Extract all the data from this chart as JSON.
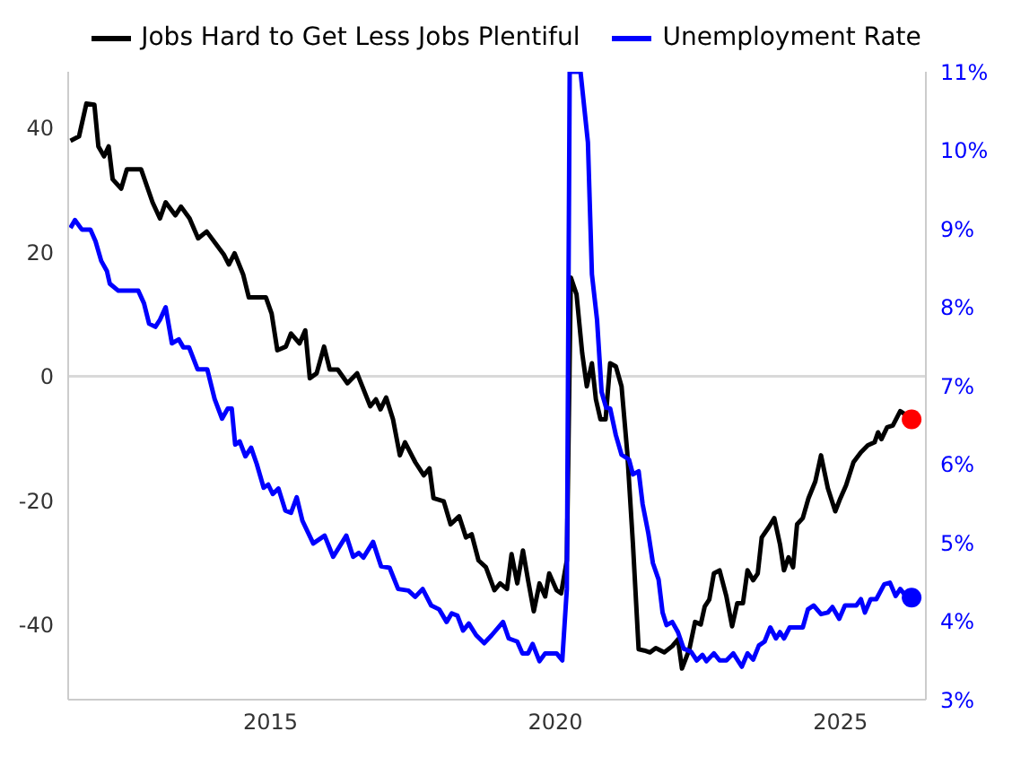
{
  "chart_data": {
    "type": "line",
    "legend": "top",
    "line_style": "solid",
    "marker": "none",
    "xlim": [
      2011.45,
      2026.5
    ],
    "xticks": [
      2015,
      2020,
      2025
    ],
    "ylim": [
      -52,
      49
    ],
    "yticks": [
      -40,
      -20,
      0,
      20,
      40
    ],
    "y2lim": [
      3,
      11
    ],
    "y2ticks": [
      {
        "value": 3,
        "label": "3%"
      },
      {
        "value": 4,
        "label": "4%"
      },
      {
        "value": 5,
        "label": "5%"
      },
      {
        "value": 6,
        "label": "6%"
      },
      {
        "value": 7,
        "label": "7%"
      },
      {
        "value": 8,
        "label": "8%"
      },
      {
        "value": 9,
        "label": "9%"
      },
      {
        "value": 10,
        "label": "10%"
      },
      {
        "value": 11,
        "label": "11%"
      }
    ],
    "grid": false,
    "ref_lines": [
      {
        "axis": "y",
        "value": 0,
        "color": "#d9d9d9"
      }
    ],
    "series": [
      {
        "name": "Jobs Hard to Get Less Jobs Plentiful",
        "color": "#000000",
        "x": [
          2011.49,
          2011.64,
          2011.77,
          2011.91,
          2011.98,
          2012.08,
          2012.16,
          2012.23,
          2012.38,
          2012.48,
          2012.73,
          2012.93,
          2013.06,
          2013.16,
          2013.33,
          2013.43,
          2013.58,
          2013.73,
          2013.88,
          2014.18,
          2014.27,
          2014.37,
          2014.52,
          2014.62,
          2014.92,
          2015.02,
          2015.12,
          2015.27,
          2015.36,
          2015.51,
          2015.61,
          2015.69,
          2015.81,
          2015.94,
          2016.04,
          2016.18,
          2016.35,
          2016.52,
          2016.75,
          2016.85,
          2016.93,
          2017.03,
          2017.15,
          2017.27,
          2017.36,
          2017.54,
          2017.69,
          2017.79,
          2017.86,
          2018.04,
          2018.16,
          2018.31,
          2018.43,
          2018.53,
          2018.65,
          2018.78,
          2018.93,
          2019.03,
          2019.15,
          2019.23,
          2019.33,
          2019.43,
          2019.52,
          2019.62,
          2019.72,
          2019.82,
          2019.89,
          2020.02,
          2020.1,
          2020.2,
          2020.27,
          2020.37,
          2020.47,
          2020.55,
          2020.64,
          2020.71,
          2020.79,
          2020.88,
          2020.96,
          2021.06,
          2021.16,
          2021.26,
          2021.36,
          2021.46,
          2021.56,
          2021.66,
          2021.76,
          2021.91,
          2022.05,
          2022.15,
          2022.22,
          2022.35,
          2022.45,
          2022.55,
          2022.62,
          2022.7,
          2022.78,
          2022.88,
          2023.0,
          2023.1,
          2023.19,
          2023.29,
          2023.37,
          2023.47,
          2023.55,
          2023.62,
          2023.74,
          2023.84,
          2023.94,
          2024.01,
          2024.09,
          2024.17,
          2024.24,
          2024.34,
          2024.44,
          2024.56,
          2024.66,
          2024.78,
          2024.91,
          2025.0,
          2025.1,
          2025.23,
          2025.36,
          2025.48,
          2025.6,
          2025.66,
          2025.72,
          2025.82,
          2025.92,
          2026.05,
          2026.17,
          2026.25
        ],
        "values": [
          37.9,
          38.6,
          43.9,
          43.7,
          37,
          35.4,
          37,
          31.7,
          30.2,
          33.3,
          33.3,
          28,
          25.4,
          28,
          25.9,
          27.3,
          25.4,
          22.2,
          23.3,
          19.6,
          18,
          19.8,
          16.4,
          12.7,
          12.7,
          10.1,
          4.2,
          4.8,
          6.9,
          5.3,
          7.4,
          -0.3,
          0.5,
          4.8,
          1.1,
          1.1,
          -1.1,
          0.5,
          -4.8,
          -3.7,
          -5.3,
          -3.4,
          -6.9,
          -12.7,
          -10.6,
          -13.8,
          -15.9,
          -14.8,
          -19.6,
          -20.1,
          -23.8,
          -22.5,
          -25.9,
          -25.4,
          -29.6,
          -30.7,
          -34.4,
          -33.3,
          -34.2,
          -28.6,
          -33.3,
          -28,
          -32.8,
          -37.8,
          -33.3,
          -35.4,
          -31.7,
          -34.4,
          -34.9,
          -29.6,
          15.9,
          13.2,
          3.7,
          -1.6,
          2.1,
          -3.7,
          -6.9,
          -6.9,
          2.1,
          1.6,
          -1.6,
          -12.2,
          -27,
          -43.9,
          -44.1,
          -44.4,
          -43.7,
          -44.4,
          -43.4,
          -42.3,
          -47,
          -43.9,
          -39.5,
          -39.9,
          -37,
          -35.9,
          -31.7,
          -31.2,
          -35.4,
          -40.2,
          -36.5,
          -36.5,
          -31.2,
          -32.8,
          -31.7,
          -25.9,
          -24.3,
          -22.8,
          -27,
          -31.2,
          -29.1,
          -30.7,
          -23.8,
          -22.8,
          -19.6,
          -16.9,
          -12.7,
          -18,
          -21.7,
          -19.6,
          -17.5,
          -13.8,
          -12.2,
          -11.1,
          -10.6,
          -9,
          -10.1,
          -8.2,
          -7.9,
          -5.6,
          -6.3,
          -6.9
        ]
      },
      {
        "name": "Unemployment Rate",
        "color": "#0000ff",
        "axis": "y2",
        "x": [
          2011.49,
          2011.57,
          2011.69,
          2011.84,
          2011.93,
          2012.03,
          2012.13,
          2012.18,
          2012.33,
          2012.68,
          2012.78,
          2012.87,
          2012.98,
          2013.06,
          2013.16,
          2013.27,
          2013.39,
          2013.47,
          2013.57,
          2013.72,
          2013.89,
          2014.02,
          2014.15,
          2014.25,
          2014.32,
          2014.38,
          2014.46,
          2014.56,
          2014.66,
          2014.76,
          2014.88,
          2014.96,
          2015.04,
          2015.14,
          2015.26,
          2015.36,
          2015.46,
          2015.56,
          2015.75,
          2015.95,
          2016.1,
          2016.33,
          2016.45,
          2016.55,
          2016.63,
          2016.8,
          2016.94,
          2017.09,
          2017.24,
          2017.42,
          2017.54,
          2017.67,
          2017.82,
          2017.96,
          2018.09,
          2018.18,
          2018.28,
          2018.38,
          2018.48,
          2018.61,
          2018.75,
          2018.88,
          2019.08,
          2019.18,
          2019.33,
          2019.42,
          2019.52,
          2019.6,
          2019.72,
          2019.82,
          2020.02,
          2020.12,
          2020.2,
          2020.25,
          2020.44,
          2020.57,
          2020.64,
          2020.73,
          2020.81,
          2020.89,
          2020.96,
          2021.06,
          2021.16,
          2021.29,
          2021.36,
          2021.46,
          2021.53,
          2021.63,
          2021.71,
          2021.81,
          2021.88,
          2021.95,
          2022.05,
          2022.15,
          2022.25,
          2022.38,
          2022.48,
          2022.58,
          2022.65,
          2022.78,
          2022.88,
          2023.0,
          2023.12,
          2023.27,
          2023.37,
          2023.47,
          2023.57,
          2023.67,
          2023.77,
          2023.87,
          2023.94,
          2024.01,
          2024.11,
          2024.34,
          2024.43,
          2024.53,
          2024.66,
          2024.78,
          2024.86,
          2024.98,
          2025.08,
          2025.28,
          2025.36,
          2025.43,
          2025.53,
          2025.63,
          2025.77,
          2025.87,
          2025.97,
          2026.05,
          2026.15,
          2026.25
        ],
        "values": [
          9.01,
          9.11,
          8.99,
          8.99,
          8.84,
          8.59,
          8.46,
          8.3,
          8.21,
          8.21,
          8.05,
          7.79,
          7.75,
          7.84,
          8.0,
          7.54,
          7.59,
          7.49,
          7.49,
          7.21,
          7.21,
          6.83,
          6.58,
          6.71,
          6.71,
          6.25,
          6.29,
          6.1,
          6.21,
          6.0,
          5.7,
          5.74,
          5.62,
          5.69,
          5.41,
          5.38,
          5.58,
          5.28,
          4.99,
          5.09,
          4.82,
          5.09,
          4.82,
          4.87,
          4.81,
          5.01,
          4.7,
          4.68,
          4.41,
          4.39,
          4.31,
          4.41,
          4.2,
          4.15,
          3.99,
          4.1,
          4.07,
          3.88,
          3.97,
          3.82,
          3.72,
          3.82,
          3.99,
          3.78,
          3.74,
          3.59,
          3.59,
          3.71,
          3.49,
          3.59,
          3.59,
          3.5,
          4.41,
          11,
          11,
          10.1,
          8.42,
          7.84,
          6.92,
          6.72,
          6.71,
          6.37,
          6.12,
          6.06,
          5.87,
          5.91,
          5.49,
          5.12,
          4.74,
          4.53,
          4.11,
          3.95,
          3.99,
          3.86,
          3.65,
          3.61,
          3.5,
          3.57,
          3.49,
          3.59,
          3.5,
          3.5,
          3.59,
          3.42,
          3.59,
          3.51,
          3.69,
          3.74,
          3.92,
          3.78,
          3.86,
          3.78,
          3.92,
          3.92,
          4.15,
          4.2,
          4.09,
          4.11,
          4.18,
          4.03,
          4.2,
          4.2,
          4.28,
          4.11,
          4.28,
          4.28,
          4.47,
          4.49,
          4.32,
          4.41,
          4.32,
          4.3
        ]
      },
      {
        "type": "scatter",
        "marker": "circle",
        "color": "#ff0000",
        "x": [
          2026.25
        ],
        "values": [
          -6.9
        ]
      },
      {
        "type": "scatter",
        "marker": "circle",
        "color": "#0000ff",
        "axis": "y2",
        "x": [
          2026.25
        ],
        "values": [
          4.3
        ]
      }
    ]
  }
}
